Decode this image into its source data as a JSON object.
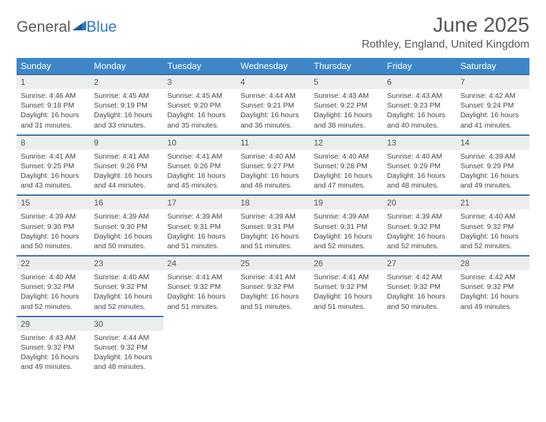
{
  "logo": {
    "text_a": "General",
    "text_b": "Blue"
  },
  "title": "June 2025",
  "subtitle": "Rothley, England, United Kingdom",
  "day_headers": [
    "Sunday",
    "Monday",
    "Tuesday",
    "Wednesday",
    "Thursday",
    "Friday",
    "Saturday"
  ],
  "colors": {
    "header_bg": "#3d87c9",
    "header_text": "#ffffff",
    "row_border": "#3d6fa3",
    "daynum_bg": "#eceded",
    "text": "#444444",
    "logo_gray": "#5a5a5a",
    "logo_blue": "#2f7bc4"
  },
  "fonts": {
    "title_size": 30,
    "subtitle_size": 16,
    "header_size": 13,
    "daynum_size": 12,
    "body_size": 10.5
  },
  "days": [
    {
      "n": 1,
      "sr": "4:46 AM",
      "ss": "9:18 PM",
      "dl": "16 hours and 31 minutes."
    },
    {
      "n": 2,
      "sr": "4:45 AM",
      "ss": "9:19 PM",
      "dl": "16 hours and 33 minutes."
    },
    {
      "n": 3,
      "sr": "4:45 AM",
      "ss": "9:20 PM",
      "dl": "16 hours and 35 minutes."
    },
    {
      "n": 4,
      "sr": "4:44 AM",
      "ss": "9:21 PM",
      "dl": "16 hours and 36 minutes."
    },
    {
      "n": 5,
      "sr": "4:43 AM",
      "ss": "9:22 PM",
      "dl": "16 hours and 38 minutes."
    },
    {
      "n": 6,
      "sr": "4:43 AM",
      "ss": "9:23 PM",
      "dl": "16 hours and 40 minutes."
    },
    {
      "n": 7,
      "sr": "4:42 AM",
      "ss": "9:24 PM",
      "dl": "16 hours and 41 minutes."
    },
    {
      "n": 8,
      "sr": "4:41 AM",
      "ss": "9:25 PM",
      "dl": "16 hours and 43 minutes."
    },
    {
      "n": 9,
      "sr": "4:41 AM",
      "ss": "9:26 PM",
      "dl": "16 hours and 44 minutes."
    },
    {
      "n": 10,
      "sr": "4:41 AM",
      "ss": "9:26 PM",
      "dl": "16 hours and 45 minutes."
    },
    {
      "n": 11,
      "sr": "4:40 AM",
      "ss": "9:27 PM",
      "dl": "16 hours and 46 minutes."
    },
    {
      "n": 12,
      "sr": "4:40 AM",
      "ss": "9:28 PM",
      "dl": "16 hours and 47 minutes."
    },
    {
      "n": 13,
      "sr": "4:40 AM",
      "ss": "9:29 PM",
      "dl": "16 hours and 48 minutes."
    },
    {
      "n": 14,
      "sr": "4:39 AM",
      "ss": "9:29 PM",
      "dl": "16 hours and 49 minutes."
    },
    {
      "n": 15,
      "sr": "4:39 AM",
      "ss": "9:30 PM",
      "dl": "16 hours and 50 minutes."
    },
    {
      "n": 16,
      "sr": "4:39 AM",
      "ss": "9:30 PM",
      "dl": "16 hours and 50 minutes."
    },
    {
      "n": 17,
      "sr": "4:39 AM",
      "ss": "9:31 PM",
      "dl": "16 hours and 51 minutes."
    },
    {
      "n": 18,
      "sr": "4:39 AM",
      "ss": "9:31 PM",
      "dl": "16 hours and 51 minutes."
    },
    {
      "n": 19,
      "sr": "4:39 AM",
      "ss": "9:31 PM",
      "dl": "16 hours and 52 minutes."
    },
    {
      "n": 20,
      "sr": "4:39 AM",
      "ss": "9:32 PM",
      "dl": "16 hours and 52 minutes."
    },
    {
      "n": 21,
      "sr": "4:40 AM",
      "ss": "9:32 PM",
      "dl": "16 hours and 52 minutes."
    },
    {
      "n": 22,
      "sr": "4:40 AM",
      "ss": "9:32 PM",
      "dl": "16 hours and 52 minutes."
    },
    {
      "n": 23,
      "sr": "4:40 AM",
      "ss": "9:32 PM",
      "dl": "16 hours and 52 minutes."
    },
    {
      "n": 24,
      "sr": "4:41 AM",
      "ss": "9:32 PM",
      "dl": "16 hours and 51 minutes."
    },
    {
      "n": 25,
      "sr": "4:41 AM",
      "ss": "9:32 PM",
      "dl": "16 hours and 51 minutes."
    },
    {
      "n": 26,
      "sr": "4:41 AM",
      "ss": "9:32 PM",
      "dl": "16 hours and 51 minutes."
    },
    {
      "n": 27,
      "sr": "4:42 AM",
      "ss": "9:32 PM",
      "dl": "16 hours and 50 minutes."
    },
    {
      "n": 28,
      "sr": "4:42 AM",
      "ss": "9:32 PM",
      "dl": "16 hours and 49 minutes."
    },
    {
      "n": 29,
      "sr": "4:43 AM",
      "ss": "9:32 PM",
      "dl": "16 hours and 49 minutes."
    },
    {
      "n": 30,
      "sr": "4:44 AM",
      "ss": "9:32 PM",
      "dl": "16 hours and 48 minutes."
    }
  ],
  "labels": {
    "sunrise": "Sunrise:",
    "sunset": "Sunset:",
    "daylight": "Daylight:"
  }
}
